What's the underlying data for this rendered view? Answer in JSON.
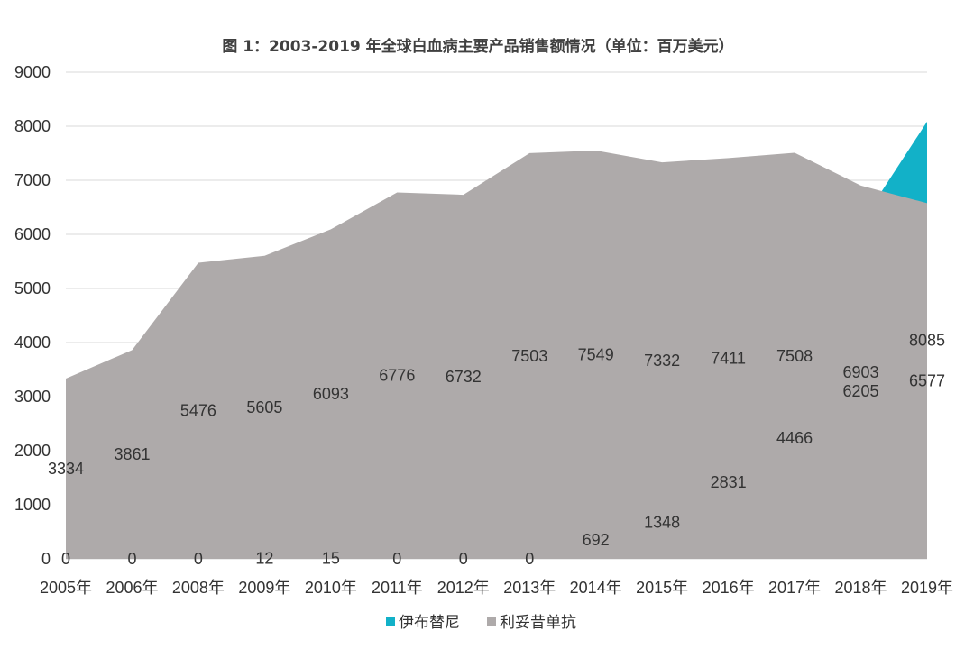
{
  "chart_data": {
    "type": "area",
    "title": "图 1：2003-2019 年全球白血病主要产品销售额情况（单位：百万美元）",
    "categories": [
      "2005年",
      "2006年",
      "2008年",
      "2009年",
      "2010年",
      "2011年",
      "2012年",
      "2013年",
      "2014年",
      "2015年",
      "2016年",
      "2017年",
      "2018年",
      "2019年"
    ],
    "ylim": [
      0,
      9000
    ],
    "yticks": [
      "0",
      "1000",
      "2000",
      "3000",
      "4000",
      "5000",
      "6000",
      "7000",
      "8000",
      "9000"
    ],
    "grid": true,
    "legend_position": "bottom",
    "stacked": false,
    "series": [
      {
        "name": "伊布替尼",
        "color": "#12b1c8",
        "values": [
          0,
          0,
          0,
          12,
          15,
          0,
          0,
          0,
          692,
          1348,
          2831,
          4466,
          6205,
          8085
        ]
      },
      {
        "name": "利妥昔单抗",
        "color": "#aeaaaa",
        "values": [
          3334,
          3861,
          5476,
          5605,
          6093,
          6776,
          6732,
          7503,
          7549,
          7332,
          7411,
          7508,
          6903,
          6577
        ]
      }
    ]
  }
}
